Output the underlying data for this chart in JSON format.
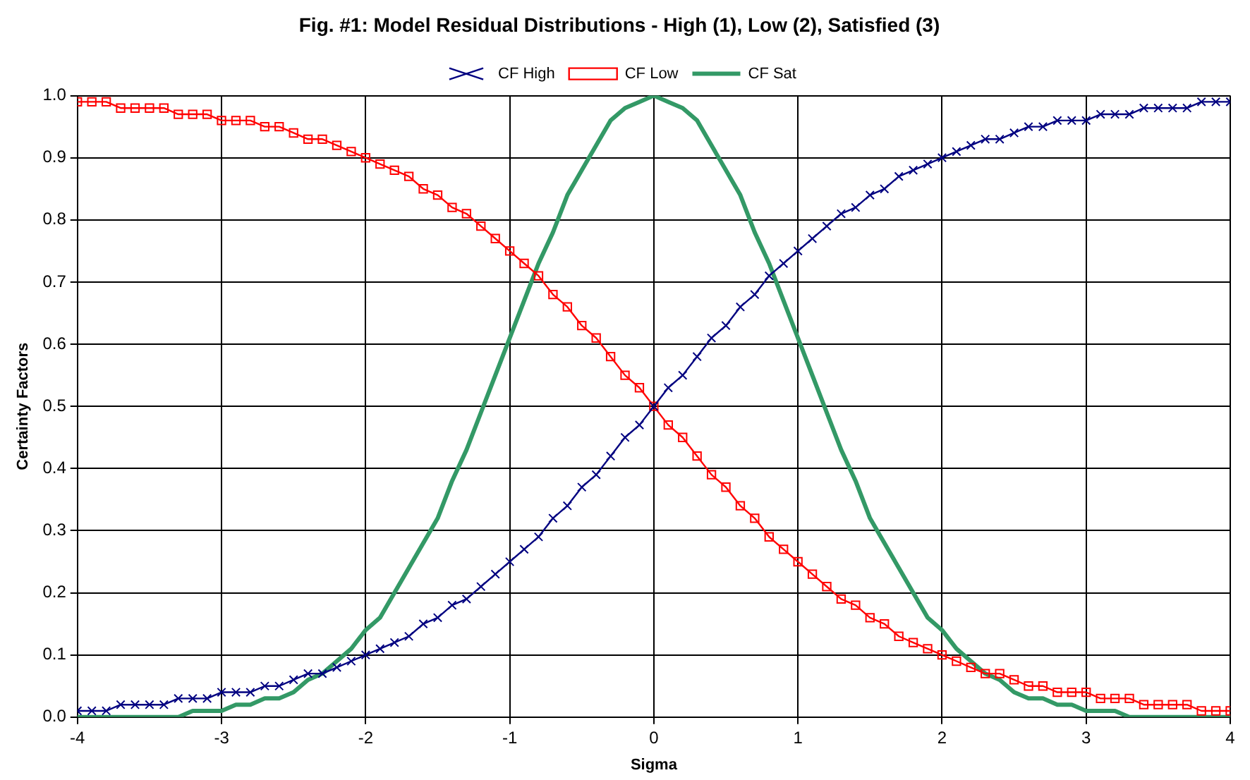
{
  "chart_data": {
    "type": "line",
    "title": "Fig. #1: Model Residual Distributions - High (1), Low (2), Satisfied (3)",
    "xlabel": "Sigma",
    "ylabel": "Certainty Factors",
    "x": [
      -4,
      -3.9,
      -3.8,
      -3.7,
      -3.6,
      -3.5,
      -3.4,
      -3.3,
      -3.2,
      -3.1,
      -3,
      -2.9,
      -2.8,
      -2.7,
      -2.6,
      -2.5,
      -2.4,
      -2.3,
      -2.2,
      -2.1,
      -2,
      -1.9,
      -1.8,
      -1.7,
      -1.6,
      -1.5,
      -1.4,
      -1.3,
      -1.2,
      -1.1,
      -1,
      -0.9,
      -0.8,
      -0.7,
      -0.6,
      -0.5,
      -0.4,
      -0.3,
      -0.2,
      -0.1,
      0,
      0.1,
      0.2,
      0.3,
      0.4,
      0.5,
      0.6,
      0.7,
      0.8,
      0.9,
      1,
      1.1,
      1.2,
      1.3,
      1.4,
      1.5,
      1.6,
      1.7,
      1.8,
      1.9,
      2,
      2.1,
      2.2,
      2.3,
      2.4,
      2.5,
      2.6,
      2.7,
      2.8,
      2.9,
      3,
      3.1,
      3.2,
      3.3,
      3.4,
      3.5,
      3.6,
      3.7,
      3.8,
      3.9,
      4
    ],
    "series": [
      {
        "name": "CF High",
        "color": "#000080",
        "marker": "cross",
        "values": [
          0.01,
          0.01,
          0.01,
          0.02,
          0.02,
          0.02,
          0.02,
          0.03,
          0.03,
          0.03,
          0.04,
          0.04,
          0.04,
          0.05,
          0.05,
          0.06,
          0.07,
          0.07,
          0.08,
          0.09,
          0.1,
          0.11,
          0.12,
          0.13,
          0.15,
          0.16,
          0.18,
          0.19,
          0.21,
          0.23,
          0.25,
          0.27,
          0.29,
          0.32,
          0.34,
          0.37,
          0.39,
          0.42,
          0.45,
          0.47,
          0.5,
          0.53,
          0.55,
          0.58,
          0.61,
          0.63,
          0.66,
          0.68,
          0.71,
          0.73,
          0.75,
          0.77,
          0.79,
          0.81,
          0.82,
          0.84,
          0.85,
          0.87,
          0.88,
          0.89,
          0.9,
          0.91,
          0.92,
          0.93,
          0.93,
          0.94,
          0.95,
          0.95,
          0.96,
          0.96,
          0.96,
          0.97,
          0.97,
          0.97,
          0.98,
          0.98,
          0.98,
          0.98,
          0.99,
          0.99,
          0.99
        ]
      },
      {
        "name": "CF Low",
        "color": "#ff0000",
        "marker": "square",
        "values": [
          0.99,
          0.99,
          0.99,
          0.98,
          0.98,
          0.98,
          0.98,
          0.97,
          0.97,
          0.97,
          0.96,
          0.96,
          0.96,
          0.95,
          0.95,
          0.94,
          0.93,
          0.93,
          0.92,
          0.91,
          0.9,
          0.89,
          0.88,
          0.87,
          0.85,
          0.84,
          0.82,
          0.81,
          0.79,
          0.77,
          0.75,
          0.73,
          0.71,
          0.68,
          0.66,
          0.63,
          0.61,
          0.58,
          0.55,
          0.53,
          0.5,
          0.47,
          0.45,
          0.42,
          0.39,
          0.37,
          0.34,
          0.32,
          0.29,
          0.27,
          0.25,
          0.23,
          0.21,
          0.19,
          0.18,
          0.16,
          0.15,
          0.13,
          0.12,
          0.11,
          0.1,
          0.09,
          0.08,
          0.07,
          0.07,
          0.06,
          0.05,
          0.05,
          0.04,
          0.04,
          0.04,
          0.03,
          0.03,
          0.03,
          0.02,
          0.02,
          0.02,
          0.02,
          0.01,
          0.01,
          0.01
        ]
      },
      {
        "name": "CF Sat",
        "color": "#339966",
        "marker": "none",
        "values": [
          0,
          0,
          0,
          0,
          0,
          0,
          0,
          0,
          0.01,
          0.01,
          0.01,
          0.02,
          0.02,
          0.03,
          0.03,
          0.04,
          0.06,
          0.07,
          0.09,
          0.11,
          0.14,
          0.16,
          0.2,
          0.24,
          0.28,
          0.32,
          0.38,
          0.43,
          0.49,
          0.55,
          0.61,
          0.67,
          0.73,
          0.78,
          0.84,
          0.88,
          0.92,
          0.96,
          0.98,
          0.99,
          1.0,
          0.99,
          0.98,
          0.96,
          0.92,
          0.88,
          0.84,
          0.78,
          0.73,
          0.67,
          0.61,
          0.55,
          0.49,
          0.43,
          0.38,
          0.32,
          0.28,
          0.24,
          0.2,
          0.16,
          0.14,
          0.11,
          0.09,
          0.07,
          0.06,
          0.04,
          0.03,
          0.03,
          0.02,
          0.02,
          0.01,
          0.01,
          0.01,
          0,
          0,
          0,
          0,
          0,
          0,
          0,
          0
        ]
      }
    ],
    "xlim": [
      -4,
      4
    ],
    "xticks": [
      -4,
      -3,
      -2,
      -1,
      0,
      1,
      2,
      3,
      4
    ],
    "ylim": [
      0,
      1
    ],
    "yticks": [
      {
        "value": 0,
        "label": "0.0"
      },
      0.1,
      0.2,
      0.3,
      0.4,
      0.5,
      0.6,
      0.7,
      0.8,
      0.9,
      {
        "value": 1,
        "label": "1.0"
      }
    ],
    "grid": true,
    "legend": "top",
    "line_style": "solid"
  }
}
